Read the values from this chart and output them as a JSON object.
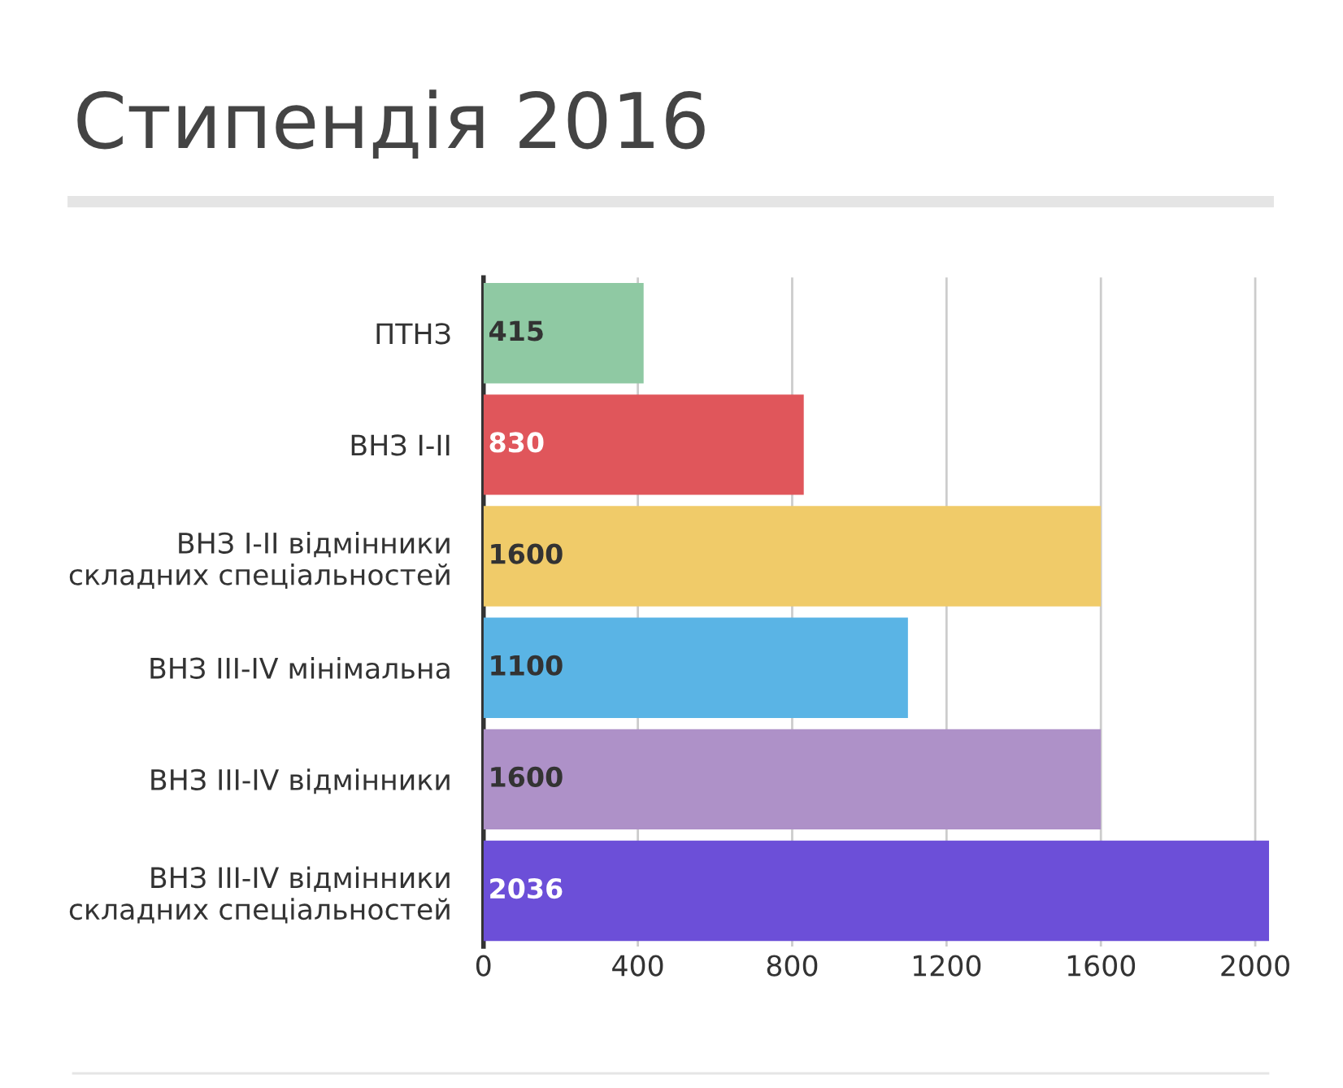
{
  "chart_data": {
    "type": "bar",
    "orientation": "horizontal",
    "title": "Стипендія 2016",
    "categories": [
      "ПТНЗ",
      "ВНЗ I-II",
      "ВНЗ I-II відмінники\nскладних спеціальностей",
      "ВНЗ III-IV мінімальна",
      "ВНЗ III-IV відмінники",
      "ВНЗ III-IV відмінники\nскладних спеціальностей"
    ],
    "values": [
      415,
      830,
      1600,
      1100,
      1600,
      2036
    ],
    "colors": [
      "#8fc9a3",
      "#e0565b",
      "#f0cb69",
      "#5ab4e5",
      "#ae91c8",
      "#6c4fd8"
    ],
    "xlim": [
      0,
      2036
    ],
    "xticks": [
      0,
      400,
      800,
      1200,
      1600,
      2000
    ],
    "grid": "x",
    "data_labels": true,
    "legend": false
  }
}
